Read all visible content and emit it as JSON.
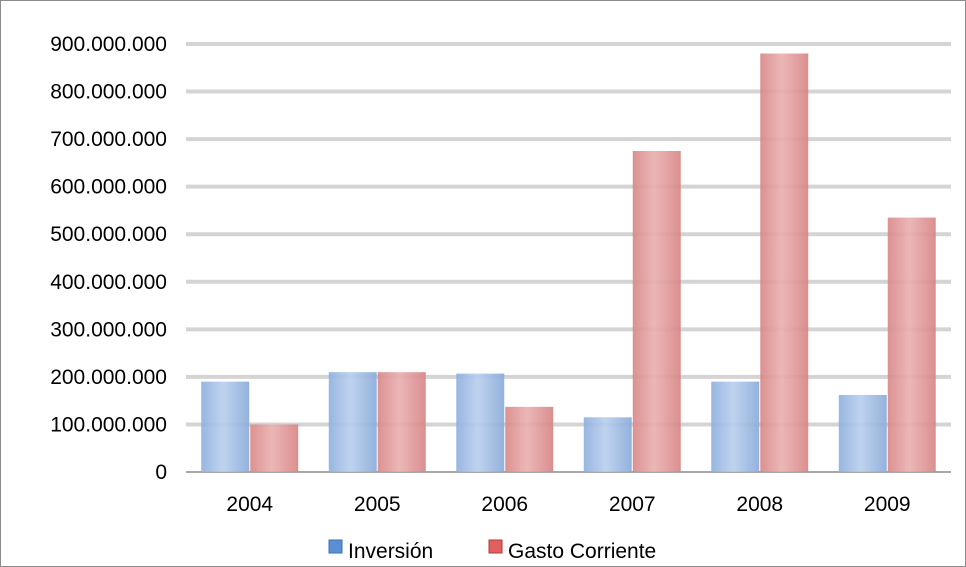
{
  "chart_data": {
    "type": "bar",
    "categories": [
      "2004",
      "2005",
      "2006",
      "2007",
      "2008",
      "2009"
    ],
    "series": [
      {
        "name": "Inversión",
        "values": [
          190000000,
          210000000,
          207000000,
          115000000,
          190000000,
          162000000
        ],
        "color": "#9fbde6"
      },
      {
        "name": "Gasto Corriente",
        "values": [
          100000000,
          210000000,
          137000000,
          675000000,
          880000000,
          535000000
        ],
        "color": "#e39a9a"
      }
    ],
    "y_ticks": [
      "0",
      "100.000.000",
      "200.000.000",
      "300.000.000",
      "400.000.000",
      "500.000.000",
      "600.000.000",
      "700.000.000",
      "800.000.000",
      "900.000.000"
    ],
    "ylim": [
      0,
      900000000
    ],
    "grid": true,
    "legend_position": "bottom",
    "title": "",
    "xlabel": "",
    "ylabel": ""
  }
}
